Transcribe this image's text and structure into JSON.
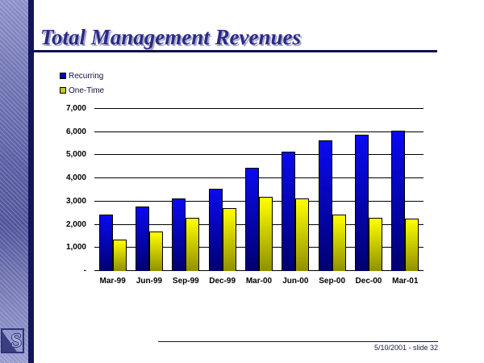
{
  "slide": {
    "title": "Total Management Revenues",
    "footer": "5/10/2001 - slide 32",
    "logo_letter": "S"
  },
  "legend": [
    {
      "label": "Recurring",
      "color": "#0000B8"
    },
    {
      "label": "One-Time",
      "color": "#C8C81E"
    }
  ],
  "colors": {
    "title_text": "#2B2B85",
    "title_rule": "#10104E",
    "sidebar_navy_band": "#14145A",
    "recurring_bar_top": "#0A0AF0",
    "recurring_bar_bottom": "#000070",
    "onetime_bar_top": "#FFFF00",
    "onetime_bar_bottom": "#909000"
  },
  "chart_data": {
    "type": "bar",
    "title": "",
    "xlabel": "",
    "ylabel": "",
    "categories": [
      "Mar-99",
      "Jun-99",
      "Sep-99",
      "Dec-99",
      "Mar-00",
      "Jun-00",
      "Sep-00",
      "Dec-00",
      "Mar-01"
    ],
    "series": [
      {
        "name": "Recurring",
        "color_top": "#0A0AF0",
        "color_bottom": "#000070",
        "values": [
          2450,
          2800,
          3150,
          3550,
          4450,
          5150,
          5650,
          5900,
          6050
        ]
      },
      {
        "name": "One-Time",
        "color_top": "#FFFF00",
        "color_bottom": "#909000",
        "values": [
          1350,
          1700,
          2300,
          2700,
          3200,
          3150,
          2450,
          2300,
          2250
        ]
      }
    ],
    "ylim": [
      0,
      7000
    ],
    "yticks": [
      {
        "label": "7,000",
        "value": 7000
      },
      {
        "label": "6,000",
        "value": 6000
      },
      {
        "label": "5,000",
        "value": 5000
      },
      {
        "label": "4,000",
        "value": 4000
      },
      {
        "label": "3,000",
        "value": 3000
      },
      {
        "label": "2,000",
        "value": 2000
      },
      {
        "label": "1,000",
        "value": 1000
      },
      {
        "label": "-",
        "value": 0
      }
    ],
    "grid": true,
    "legend_position": "top-left"
  }
}
